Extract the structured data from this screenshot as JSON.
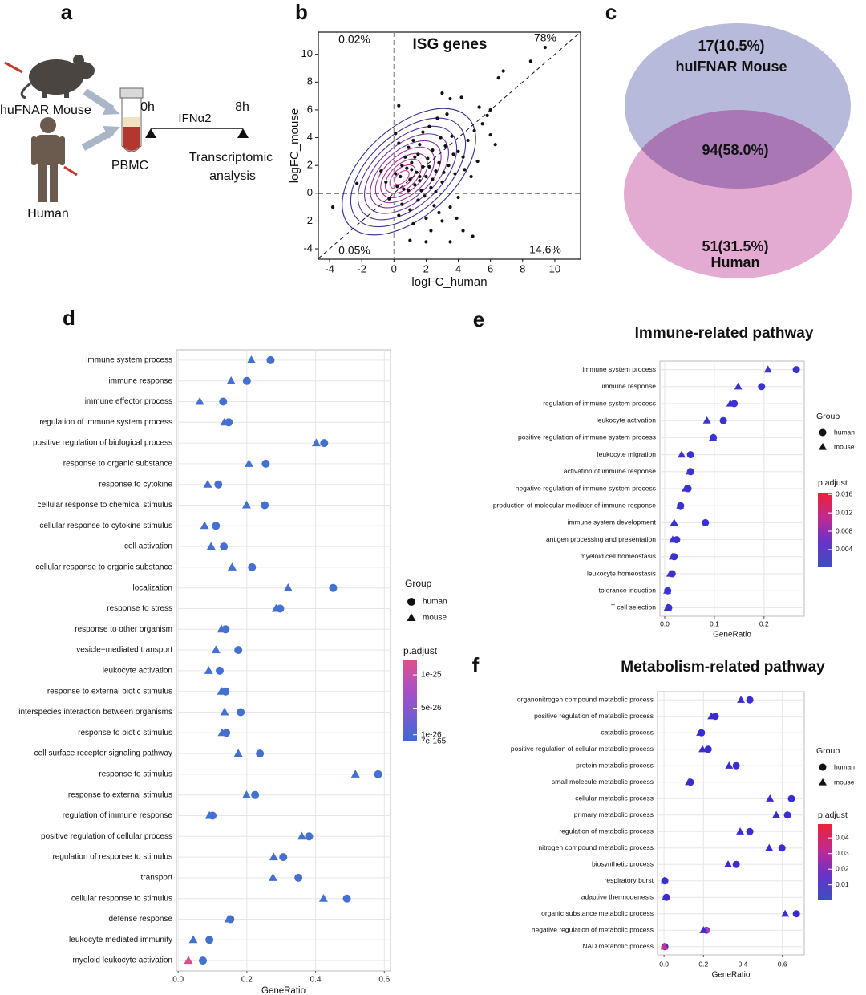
{
  "panel_labels": [
    "a",
    "b",
    "c",
    "d",
    "e",
    "f"
  ],
  "schematic": {
    "mouse": "huFNAR Mouse",
    "human": "Human",
    "sample": "PBMC",
    "start": "0h",
    "end": "8h",
    "treatment": "IFNα2",
    "analysis": [
      "Transcriptomic",
      "analysis"
    ]
  },
  "chart_data": [
    {
      "type": "scatter",
      "title": "ISG genes",
      "xlabel": "logFC_human",
      "ylabel": "logFC_mouse",
      "annotations": [
        "0.02%",
        "78%",
        "0.05%",
        "14.6%"
      ],
      "color": "#111111",
      "xlim": [
        -4.7,
        11.6
      ],
      "ylim": [
        -4.75,
        11.6
      ],
      "xticks": [
        -4,
        -2,
        0,
        2,
        4,
        6,
        8,
        10
      ],
      "yticks": [
        -4,
        -2,
        0,
        2,
        4,
        6,
        8,
        10
      ],
      "x": [
        9.4,
        8.5,
        6.8,
        6.5,
        3,
        0.3,
        3.5,
        4.2,
        5.3,
        6.0,
        -2.3,
        -3.8,
        0.1,
        0.3,
        4.3,
        4.9,
        2.3,
        1.0,
        2.0,
        3.5,
        0.2,
        0.4,
        0.6,
        0.8,
        1.0,
        1.1,
        1.3,
        1.4,
        1.5,
        1.6,
        1.8,
        2.0,
        2.1,
        2.3,
        2.4,
        2.6,
        2.8,
        3.0,
        3.2,
        3.4,
        3.6,
        3.8,
        4.0,
        4.3,
        4.6,
        5.0,
        5.5,
        6.0,
        5.8,
        4.8,
        0.5,
        1.0,
        1.5,
        2.0,
        2.5,
        3.0,
        3.5,
        4.0,
        1.2,
        0.3,
        0.7,
        0.9,
        1.2,
        1.8,
        2.2,
        2.7,
        3.3,
        2.9,
        1.6,
        0.5,
        1.7,
        2.2,
        2.6,
        3.1,
        3.7,
        4.4,
        0.1,
        -0.5,
        -0.8,
        -0.3,
        1.9,
        2.8,
        3.9,
        5.2,
        6.3,
        0.9,
        1.3,
        2.4,
        1.1,
        1.6
      ],
      "values": [
        10.5,
        9.5,
        8.8,
        8.3,
        7.2,
        6.3,
        6.8,
        6.9,
        6.2,
        6.0,
        0.7,
        -1,
        4.3,
        3.6,
        -2.7,
        -3.1,
        -2.7,
        -3.4,
        -3.5,
        -3.5,
        0.5,
        1.2,
        0.3,
        1.8,
        1.0,
        2.2,
        0.6,
        1.5,
        2.8,
        0.9,
        1.9,
        1.2,
        2.5,
        0.4,
        3.1,
        1.6,
        2.2,
        0.8,
        3.4,
        2.0,
        4.1,
        1.4,
        3.0,
        2.6,
        3.8,
        4.5,
        5.0,
        4.2,
        5.6,
        1.2,
        -0.8,
        -1.2,
        -0.5,
        -1.8,
        -0.9,
        -2.0,
        -1.0,
        -0.3,
        -2.2,
        -1.6,
        2.6,
        3.3,
        3.8,
        4.4,
        4.8,
        5.4,
        5.7,
        4.0,
        3.5,
        2.0,
        0.2,
        1.9,
        0.1,
        1.5,
        2.8,
        1.7,
        1.4,
        0.8,
        1.6,
        -0.4,
        -0.2,
        -1.4,
        -1.8,
        2.3,
        3.5,
        0.2,
        2.6,
        1.0,
        1.7,
        1.2
      ]
    },
    {
      "type": "venn",
      "sets": [
        "huIFNAR Mouse",
        "Human"
      ],
      "values": [
        17,
        94,
        51
      ],
      "value_labels": [
        "17(10.5%)",
        "94(58.0%)",
        "51(31.5%)"
      ],
      "colors": [
        "#b8badc",
        "#a877b4",
        "#e4abd2"
      ]
    },
    {
      "type": "dot",
      "xlabel": "GeneRatio",
      "legend_title": "Group",
      "grid": true,
      "xlim": [
        -0.005,
        0.618
      ],
      "xticks": [
        {
          "value": 0,
          "label": "0.0"
        },
        0.2,
        0.4,
        0.6
      ],
      "categories": [
        "immune system process",
        "immune response",
        "immune effector process",
        "regulation of immune system process",
        "positive regulation of biological process",
        "response to organic substance",
        "response to cytokine",
        "cellular response to chemical stimulus",
        "cellular response to cytokine stimulus",
        "cell activation",
        "cellular response to organic substance",
        "localization",
        "response to stress",
        "response to other organism",
        "vesicle−mediated transport",
        "leukocyte activation",
        "response to external biotic stimulus",
        "interspecies interaction between organisms",
        "response to biotic stimulus",
        "cell surface receptor signaling pathway",
        "response to stimulus",
        "response to external stimulus",
        "regulation of immune response",
        "positive regulation of cellular process",
        "regulation of response to stimulus",
        "transport",
        "cellular response to stimulus",
        "defense response",
        "leukocyte mediated immunity",
        "myeloid leukocyte activation"
      ],
      "series": [
        {
          "name": "human",
          "shape": "circle",
          "color": "#4470d0",
          "values": [
            0.269,
            0.2,
            0.131,
            0.147,
            0.425,
            0.255,
            0.117,
            0.252,
            0.11,
            0.133,
            0.215,
            0.451,
            0.297,
            0.138,
            0.175,
            0.121,
            0.138,
            0.182,
            0.14,
            0.238,
            0.582,
            0.224,
            0.1,
            0.381,
            0.306,
            0.35,
            0.491,
            0.152,
            0.091,
            0.072
          ]
        },
        {
          "name": "mouse",
          "shape": "triangle",
          "color": "#4470d0",
          "colors": [
            "#4470d0",
            "#4470d0",
            "#4470d0",
            "#4470d0",
            "#4470d0",
            "#4470d0",
            "#4470d0",
            "#4470d0",
            "#4470d0",
            "#4470d0",
            "#4470d0",
            "#4470d0",
            "#4470d0",
            "#4470d0",
            "#4470d0",
            "#4470d0",
            "#4470d0",
            "#4470d0",
            "#4470d0",
            "#4470d0",
            "#4470d0",
            "#4470d0",
            "#4470d0",
            "#4470d0",
            "#4470d0",
            "#4470d0",
            "#4470d0",
            "#4470d0",
            "#4470d0",
            "#d94f86"
          ],
          "values": [
            0.213,
            0.154,
            0.063,
            0.135,
            0.402,
            0.206,
            0.086,
            0.199,
            0.077,
            0.096,
            0.157,
            0.32,
            0.285,
            0.126,
            0.11,
            0.089,
            0.126,
            0.135,
            0.128,
            0.175,
            0.516,
            0.199,
            0.091,
            0.36,
            0.278,
            0.276,
            0.423,
            0.147,
            0.044,
            0.03
          ]
        }
      ],
      "colorbar": {
        "title": "p.adjust",
        "lim": [
          7e-165,
          1.23e-25
        ],
        "ticks": [
          1e-25,
          5e-26,
          1e-26,
          7e-165
        ],
        "colors": [
          "#3c6bd0",
          "#7a5ad0",
          "#b04fc0",
          "#e0508a"
        ]
      }
    },
    {
      "type": "dot",
      "title": "Immune-related pathway",
      "xlabel": "GeneRatio",
      "legend_title": "Group",
      "grid": true,
      "xlim": [
        -0.0097,
        0.281
      ],
      "xticks": [
        {
          "value": 0,
          "label": "0.0"
        },
        0.1,
        0.2
      ],
      "categories": [
        "immune system process",
        "immune response",
        "regulation of immune system process",
        "leukocyte activation",
        "positive regulation of immune system process",
        "leukocyte migration",
        "activation of immune response",
        "negative regulation of immune system process",
        "production of molecular mediator of immune response",
        "immune system development",
        "antigen processing and presentation",
        "myeloid cell homeostasis",
        "leukocyte homeostasis",
        "tolerance induction",
        "T cell selection"
      ],
      "series": [
        {
          "name": "human",
          "shape": "circle",
          "color": "#3a33d0",
          "values": [
            0.265,
            0.195,
            0.14,
            0.118,
            0.098,
            0.052,
            0.052,
            0.047,
            0.032,
            0.082,
            0.024,
            0.019,
            0.015,
            0.006,
            0.008
          ]
        },
        {
          "name": "mouse",
          "shape": "triangle",
          "color": "#3a33d0",
          "values": [
            0.208,
            0.148,
            0.132,
            0.085,
            0.097,
            0.034,
            0.05,
            0.042,
            0.031,
            0.019,
            0.016,
            0.016,
            0.011,
            0.005,
            0.006
          ]
        }
      ],
      "colorbar": {
        "title": "p.adjust",
        "lim": [
          0.0003,
          0.0164
        ],
        "ticks": [
          0.016,
          0.012,
          0.008,
          0.004
        ],
        "colors": [
          "#3b4fbf",
          "#6a32c8",
          "#c02a90",
          "#ec2136"
        ]
      }
    },
    {
      "type": "dot",
      "title": "Metabolism-related pathway",
      "xlabel": "GeneRatio",
      "legend_title": "Group",
      "grid": true,
      "xlim": [
        -0.033,
        0.711
      ],
      "xticks": [
        {
          "value": 0,
          "label": "0.0"
        },
        0.2,
        0.4,
        0.6
      ],
      "categories": [
        "organonitrogen compound metabolic process",
        "positive regulation of metabolic process",
        "catabolic process",
        "positive regulation of cellular metabolic process",
        "protein metabolic process",
        "small molecule metabolic process",
        "cellular metabolic process",
        "primary metabolic process",
        "regulation of metabolic process",
        "nitrogen compound metabolic process",
        "biosynthetic process",
        "respiratory burst",
        "adaptive thermogenesis",
        "organic substance metabolic process",
        "negative regulation of metabolic process",
        "NAD metabolic process"
      ],
      "series": [
        {
          "name": "human",
          "shape": "circle",
          "color": "#3a2dd0",
          "colors": [
            "#3a2dd0",
            "#3a2dd0",
            "#3a2dd0",
            "#3a2dd0",
            "#3a2dd0",
            "#3a2dd0",
            "#3a2dd0",
            "#3a2dd0",
            "#3a2dd0",
            "#3a2dd0",
            "#3a2dd0",
            "#3a2dd0",
            "#3a2dd0",
            "#3a2dd0",
            "#9a3fb8",
            "#3a2dd0"
          ],
          "values": [
            0.435,
            0.26,
            0.19,
            0.224,
            0.366,
            0.134,
            0.646,
            0.626,
            0.435,
            0.598,
            0.366,
            0.004,
            0.012,
            0.671,
            0.215,
            0.004
          ]
        },
        {
          "name": "mouse",
          "shape": "triangle",
          "color": "#3a2dd0",
          "colors": [
            "#3a2dd0",
            "#3a2dd0",
            "#3a2dd0",
            "#3a2dd0",
            "#3a2dd0",
            "#3a2dd0",
            "#3a2dd0",
            "#3a2dd0",
            "#3a2dd0",
            "#3a2dd0",
            "#3a2dd0",
            "#3a2dd0",
            "#3a2dd0",
            "#3a2dd0",
            "#3a2dd0",
            "#c5378c"
          ],
          "values": [
            0.39,
            0.24,
            0.183,
            0.195,
            0.33,
            0.126,
            0.537,
            0.569,
            0.386,
            0.533,
            0.325,
            0.002,
            0.008,
            0.614,
            0.2,
            0.002
          ]
        }
      ],
      "colorbar": {
        "title": "p.adjust",
        "lim": [
          0.0001,
          0.0488
        ],
        "ticks": [
          0.04,
          0.03,
          0.02,
          0.01
        ],
        "colors": [
          "#3b4fbf",
          "#6a32c8",
          "#c02a90",
          "#ec2136"
        ]
      }
    }
  ]
}
